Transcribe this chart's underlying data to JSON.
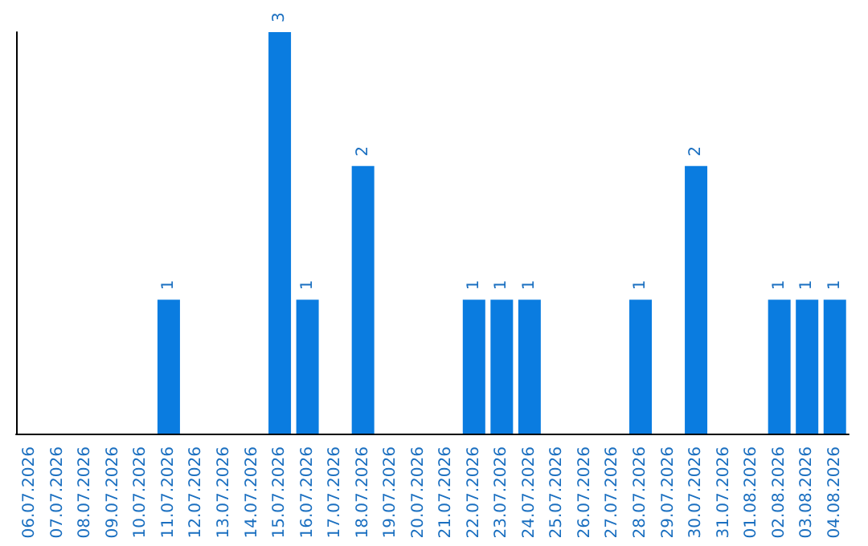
{
  "chart_data": {
    "type": "bar",
    "categories": [
      "06.07.2026",
      "07.07.2026",
      "08.07.2026",
      "09.07.2026",
      "10.07.2026",
      "11.07.2026",
      "12.07.2026",
      "13.07.2026",
      "14.07.2026",
      "15.07.2026",
      "16.07.2026",
      "17.07.2026",
      "18.07.2026",
      "19.07.2026",
      "20.07.2026",
      "21.07.2026",
      "22.07.2026",
      "23.07.2026",
      "24.07.2026",
      "25.07.2026",
      "26.07.2026",
      "27.07.2026",
      "28.07.2026",
      "29.07.2026",
      "30.07.2026",
      "31.07.2026",
      "01.08.2026",
      "02.08.2026",
      "03.08.2026",
      "04.08.2026"
    ],
    "values": [
      0,
      0,
      0,
      0,
      0,
      1,
      0,
      0,
      0,
      3,
      1,
      0,
      2,
      0,
      0,
      0,
      1,
      1,
      1,
      0,
      0,
      0,
      1,
      0,
      2,
      0,
      0,
      1,
      1,
      1
    ],
    "value_labels": [
      null,
      null,
      null,
      null,
      null,
      "1",
      null,
      null,
      null,
      "3",
      "1",
      null,
      "2",
      null,
      null,
      null,
      "1",
      "1",
      "1",
      null,
      null,
      null,
      "1",
      null,
      "2",
      null,
      null,
      "1",
      "1",
      "1"
    ],
    "color": "#0a7ce0",
    "ylim": [
      0,
      3
    ],
    "tick_labels": "x"
  }
}
